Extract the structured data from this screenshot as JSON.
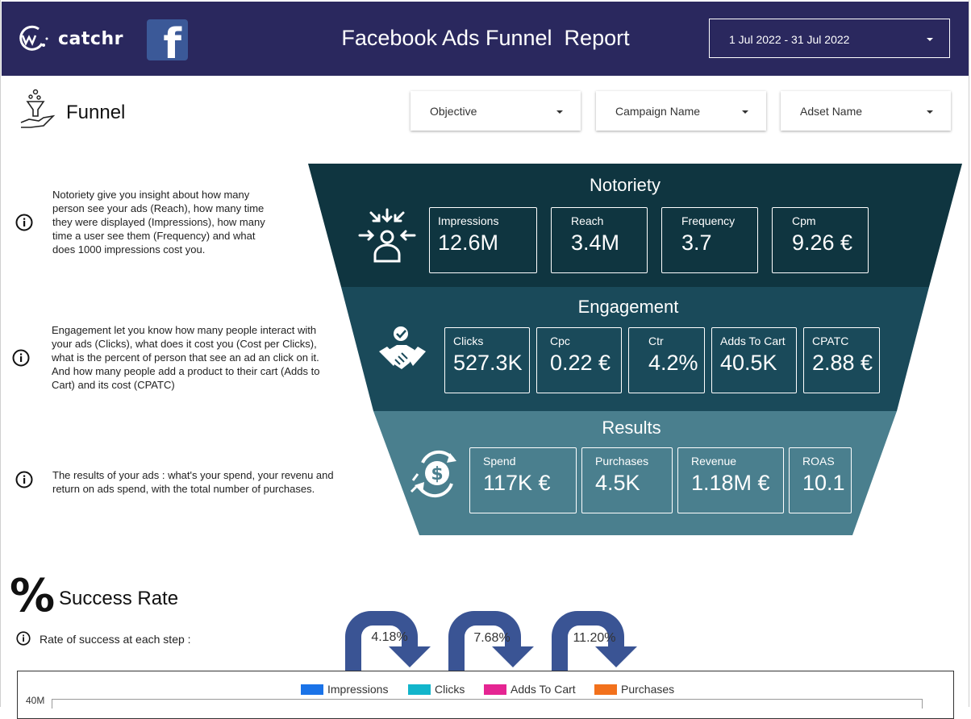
{
  "header": {
    "logo_text": "catchr",
    "title": "Facebook Ads Funnel  Report",
    "date_range": "1 Jul 2022 - 31 Jul 2022"
  },
  "funnel_section": {
    "title": "Funnel",
    "filters": [
      {
        "label": "Objective"
      },
      {
        "label": "Campaign Name"
      },
      {
        "label": "Adset Name"
      }
    ]
  },
  "descriptions": {
    "notoriety": [
      "Notoriety give you insight about how many",
      "person see your ads (Reach), how many time",
      "they were displayed (Impressions), how many",
      "time a user see them (Frequency) and what",
      "does 1000 impressions cost you."
    ],
    "engagement": [
      "Engagement let you know how many people interact with",
      "your ads (Clicks), what does it cost you (Cost per Clicks),",
      "what is  the percent of person that see an ad an click on it.",
      "And how many people add a product to their cart (Adds to",
      "Cart) and its cost (CPATC)"
    ],
    "results": [
      "The results of your ads : what's your spend, your revenu and",
      "return on ads spend, with the total number of purchases."
    ]
  },
  "funnel": {
    "notoriety": {
      "title": "Notoriety",
      "color": "#0f3540",
      "kpis": [
        {
          "label": "Impressions",
          "value": "12.6M"
        },
        {
          "label": "Reach",
          "value": "3.4M"
        },
        {
          "label": "Frequency",
          "value": "3.7"
        },
        {
          "label": "Cpm",
          "value": "9.26 €"
        }
      ]
    },
    "engagement": {
      "title": "Engagement",
      "color": "#1a4a5a",
      "kpis": [
        {
          "label": "Clicks",
          "value": "527.3K"
        },
        {
          "label": "Cpc",
          "value": "0.22 €"
        },
        {
          "label": "Ctr",
          "value": "4.2%"
        },
        {
          "label": "Adds To Cart",
          "value": "40.5K"
        },
        {
          "label": "CPATC",
          "value": "2.88 €"
        }
      ]
    },
    "results": {
      "title": "Results",
      "color": "#4a7f8e",
      "kpis": [
        {
          "label": "Spend",
          "value": "117K €"
        },
        {
          "label": "Purchases",
          "value": "4.5K"
        },
        {
          "label": "Revenue",
          "value": "1.18M €"
        },
        {
          "label": "ROAS",
          "value": "10.1"
        }
      ]
    }
  },
  "success": {
    "title": "Success Rate",
    "percent_glyph": "%",
    "subtitle": "Rate of success at each step :",
    "steps": [
      {
        "value": "4.18%"
      },
      {
        "value": "7.68%"
      },
      {
        "value": "11.20%"
      }
    ],
    "arrow_color": "#3a5494"
  },
  "chart_data": {
    "type": "bar",
    "series": [
      {
        "name": "Impressions",
        "color": "#1a73e8"
      },
      {
        "name": "Clicks",
        "color": "#12b5cb"
      },
      {
        "name": "Adds To Cart",
        "color": "#e52592"
      },
      {
        "name": "Purchases",
        "color": "#f2711c"
      }
    ],
    "y_ticks": [
      "40M"
    ]
  }
}
